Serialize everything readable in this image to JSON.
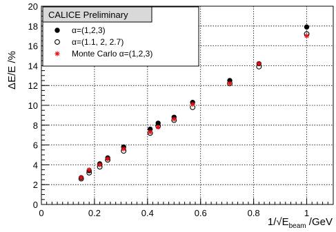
{
  "chart_data": {
    "type": "scatter",
    "title": "",
    "xlabel": {
      "prefix": "1/√E",
      "subscript": "beam",
      "suffix": " /GeV"
    },
    "ylabel": "ΔE/E /%",
    "xlim": [
      0,
      1.1
    ],
    "ylim": [
      0,
      20
    ],
    "x_ticks": [
      "0",
      "0.2",
      "0.4",
      "0.6",
      "0.8",
      "1"
    ],
    "x_tick_values": [
      0,
      0.2,
      0.4,
      0.6,
      0.8,
      1.0
    ],
    "y_ticks": [
      "0",
      "2",
      "4",
      "6",
      "8",
      "10",
      "12",
      "14",
      "16",
      "18",
      "20"
    ],
    "y_tick_values": [
      0,
      2,
      4,
      6,
      8,
      10,
      12,
      14,
      16,
      18,
      20
    ],
    "grid": true,
    "legend_title": "CALICE Preliminary",
    "legend_position": "top-left",
    "series": [
      {
        "name": "α=(1,2,3)",
        "marker": "filled-circle",
        "color": "#000000",
        "x": [
          0.15,
          0.18,
          0.22,
          0.25,
          0.31,
          0.41,
          0.44,
          0.5,
          0.57,
          0.71,
          0.82,
          1.0
        ],
        "y": [
          2.7,
          3.4,
          4.1,
          4.7,
          5.8,
          7.6,
          8.2,
          8.8,
          10.3,
          12.5,
          14.2,
          17.9
        ]
      },
      {
        "name": "α=(1.1, 2, 2.7)",
        "marker": "open-circle",
        "color": "#000000",
        "x": [
          0.15,
          0.18,
          0.22,
          0.25,
          0.31,
          0.41,
          0.44,
          0.5,
          0.57,
          0.71,
          0.82,
          1.0
        ],
        "y": [
          2.6,
          3.2,
          3.8,
          4.5,
          5.4,
          7.2,
          7.9,
          8.5,
          9.8,
          12.2,
          13.9,
          17.2
        ]
      },
      {
        "name": "Monte Carlo  α=(1,2,3)",
        "marker": "star",
        "color": "#e8141a",
        "x": [
          0.15,
          0.18,
          0.22,
          0.25,
          0.31,
          0.41,
          0.44,
          0.5,
          0.57,
          0.71,
          0.82,
          1.0
        ],
        "y": [
          2.7,
          3.5,
          4.0,
          4.6,
          5.6,
          7.3,
          7.8,
          8.6,
          10.1,
          12.2,
          14.2,
          17.0
        ]
      }
    ]
  }
}
